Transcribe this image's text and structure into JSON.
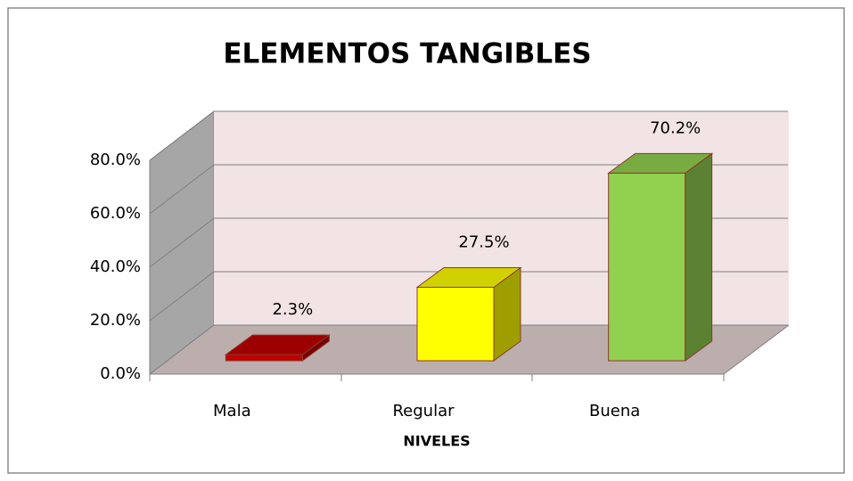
{
  "chart_data": {
    "type": "bar3d",
    "title": "ELEMENTOS TANGIBLES",
    "categories": [
      "Mala",
      "Regular",
      "Buena"
    ],
    "values": [
      2.3,
      27.5,
      70.2
    ],
    "value_labels": [
      "2.3%",
      "27.5%",
      "70.2%"
    ],
    "colors": [
      "#c00000",
      "#ffff00",
      "#92d050"
    ],
    "x_label": "NIVELES",
    "ylim": [
      0,
      80
    ],
    "yticks": [
      {
        "value": 0,
        "label": "0.0%"
      },
      {
        "value": 20,
        "label": "20.0%"
      },
      {
        "value": 40,
        "label": "40.0%"
      },
      {
        "value": 60,
        "label": "60.0%"
      },
      {
        "value": 80,
        "label": "80.0%"
      }
    ],
    "grid": true
  }
}
